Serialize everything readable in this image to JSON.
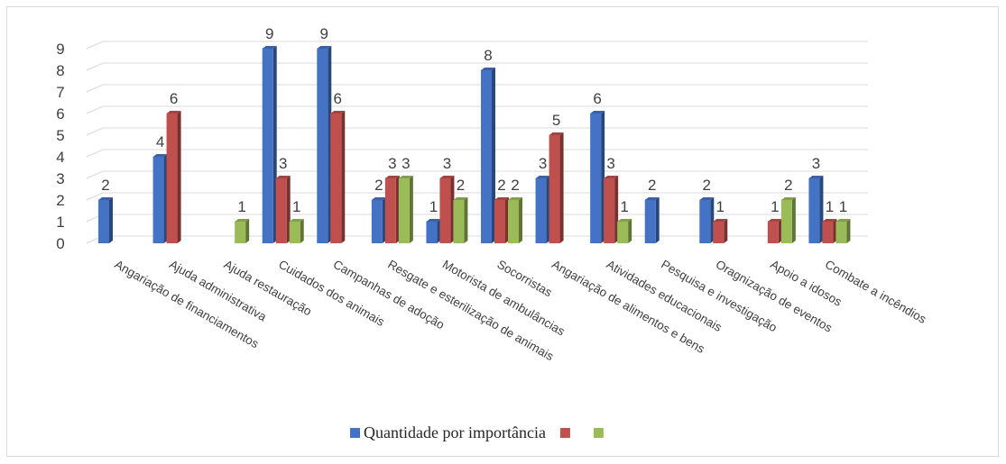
{
  "chart_data": {
    "type": "bar",
    "title": "",
    "xlabel": "",
    "ylabel": "",
    "ylim": [
      0,
      9
    ],
    "yticks": [
      "0",
      "1",
      "2",
      "3",
      "4",
      "5",
      "6",
      "7",
      "8",
      "9"
    ],
    "grid": true,
    "legend_position": "bottom",
    "categories": [
      "Angariação de financiamentos",
      "Ajuda administrativa",
      "Ajuda restauração",
      "Cuidados dos animais",
      "Campanhas de adoção",
      "Resgate e esterilização de animais",
      "Motorista de ambulâncias",
      "Socorristas",
      "Angariação de alimentos e bens",
      "Atividades educacionais",
      "Pesquisa e investigação",
      "Oragnização de eventos",
      "Apoio a idosos",
      "Combate a incêndios"
    ],
    "series": [
      {
        "name": "Quantidade por importância",
        "color": "#4472c4",
        "values": [
          2,
          4,
          null,
          9,
          9,
          2,
          1,
          8,
          3,
          6,
          2,
          2,
          null,
          3
        ]
      },
      {
        "name": "",
        "color": "#c0504d",
        "values": [
          null,
          6,
          null,
          3,
          6,
          3,
          3,
          2,
          5,
          3,
          null,
          1,
          1,
          1
        ]
      },
      {
        "name": "",
        "color": "#9bbb59",
        "values": [
          null,
          null,
          1,
          1,
          null,
          3,
          2,
          2,
          null,
          1,
          null,
          null,
          2,
          1
        ]
      }
    ]
  }
}
